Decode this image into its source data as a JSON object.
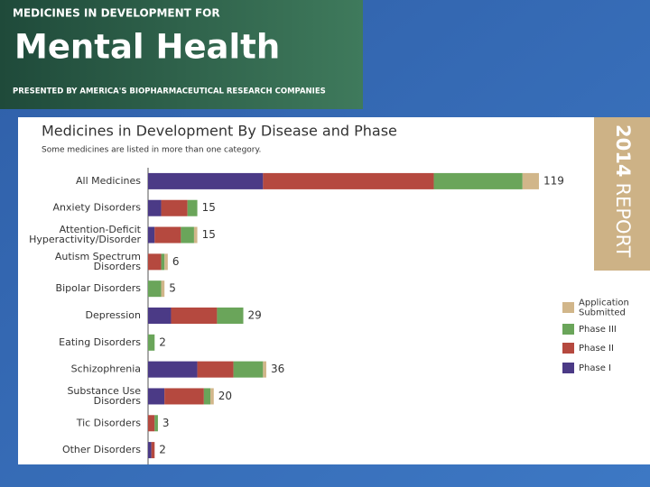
{
  "banner": {
    "kicker": "MEDICINES IN DEVELOPMENT FOR",
    "title": "Mental Health",
    "presenter": "PRESENTED BY AMERICA'S BIOPHARMACEUTICAL RESEARCH COMPANIES"
  },
  "report": {
    "year": "2014",
    "label": "REPORT"
  },
  "chart_data": {
    "type": "stacked_barh",
    "title": "Medicines in Development By Disease and Phase",
    "subtitle": "Some medicines are listed in more than one category.",
    "categories": [
      "All Medicines",
      "Anxiety Disorders",
      "Attention-Deficit\nHyperactivity/Disorder",
      "Autism Spectrum\nDisorders",
      "Bipolar Disorders",
      "Depression",
      "Eating Disorders",
      "Schizophrenia",
      "Substance Use\nDisorders",
      "Tic Disorders",
      "Other Disorders"
    ],
    "series": [
      {
        "name": "Phase I",
        "color": "#4b3a86",
        "values": [
          35,
          4,
          2,
          0,
          0,
          7,
          0,
          15,
          5,
          0,
          1
        ]
      },
      {
        "name": "Phase II",
        "color": "#b5493f",
        "values": [
          52,
          8,
          8,
          4,
          0,
          14,
          0,
          11,
          12,
          2,
          1
        ]
      },
      {
        "name": "Phase III",
        "color": "#6aa55a",
        "values": [
          27,
          3,
          4,
          1,
          4,
          8,
          2,
          9,
          2,
          1,
          0
        ]
      },
      {
        "name": "Application\nSubmitted",
        "color": "#d1b68a",
        "values": [
          5,
          0,
          1,
          1,
          1,
          0,
          0,
          1,
          1,
          0,
          0
        ]
      }
    ],
    "totals": [
      119,
      15,
      15,
      6,
      5,
      29,
      2,
      36,
      20,
      3,
      2
    ],
    "xlim": [
      0,
      130
    ],
    "legend": "right"
  }
}
